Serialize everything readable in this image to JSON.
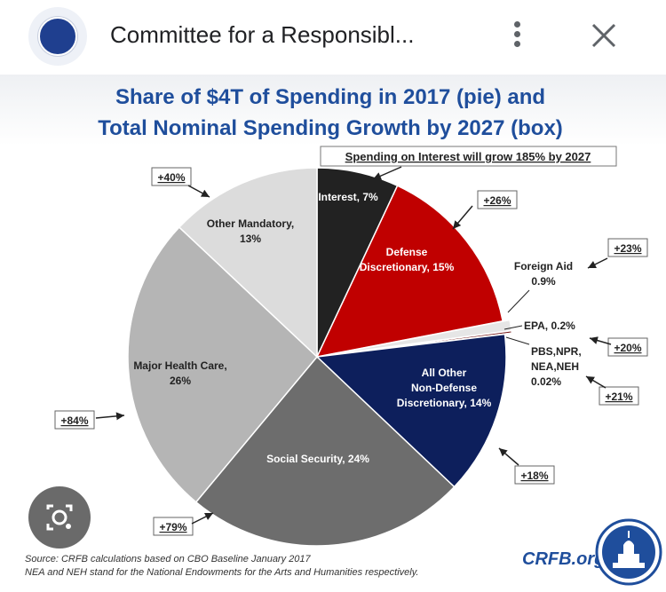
{
  "header": {
    "title": "Committee for a Responsibl...",
    "more_label": "More options",
    "close_label": "Close"
  },
  "chart_data": {
    "type": "pie",
    "title_line1": "Share of $4T of Spending in 2017 (pie) and",
    "title_line2": "Total Nominal Spending Growth by 2027 (box)",
    "slices": [
      {
        "name": "Interest",
        "value": 7,
        "label": "Interest, 7%",
        "color": "#222222",
        "text_color": "#ffffff",
        "growth": "+185%"
      },
      {
        "name": "Defense Discretionary",
        "value": 15,
        "label_lines": [
          "Defense",
          "Discretionary, 15%"
        ],
        "color": "#c00000",
        "text_color": "#ffffff",
        "growth": "+26%"
      },
      {
        "name": "Foreign Aid",
        "value": 0.9,
        "label_lines": [
          "Foreign Aid",
          "0.9%"
        ],
        "color": "#e6e6e6",
        "text_color": "#222222",
        "growth": "+23%"
      },
      {
        "name": "EPA",
        "value": 0.2,
        "label": "EPA, 0.2%",
        "color": "#7a1f1f",
        "text_color": "#222222",
        "growth": "+20%"
      },
      {
        "name": "PBS,NPR,NEA,NEH",
        "value": 0.02,
        "label_lines": [
          "PBS,NPR,",
          "NEA,NEH",
          "0.02%"
        ],
        "color": "#444444",
        "text_color": "#222222",
        "growth": "+21%"
      },
      {
        "name": "All Other Non-Defense Discretionary",
        "value": 14,
        "label_lines": [
          "All Other",
          "Non-Defense",
          "Discretionary, 14%"
        ],
        "color": "#0d1f5c",
        "text_color": "#ffffff",
        "growth": "+18%"
      },
      {
        "name": "Social Security",
        "value": 24,
        "label": "Social Security, 24%",
        "color": "#6d6d6d",
        "text_color": "#ffffff",
        "growth": "+79%"
      },
      {
        "name": "Major Health Care",
        "value": 26,
        "label_lines": [
          "Major Health Care,",
          "26%"
        ],
        "color": "#b5b5b5",
        "text_color": "#222222",
        "growth": "+84%"
      },
      {
        "name": "Other Mandatory",
        "value": 13,
        "label_lines": [
          "Other Mandatory,",
          "13%"
        ],
        "color": "#dcdcdc",
        "text_color": "#222222",
        "growth": "+40%"
      }
    ],
    "callout": "Spending on Interest will grow 185% by 2027",
    "source_line1": "Source: CRFB calculations based on CBO Baseline January 2017",
    "source_line2": "NEA and NEH stand for the National Endowments for the Arts and Humanities respectively.",
    "brand": "CRFB.org"
  },
  "colors": {
    "title": "#1f4e9c",
    "brand": "#1f4e9c",
    "background": "#ffffff"
  }
}
